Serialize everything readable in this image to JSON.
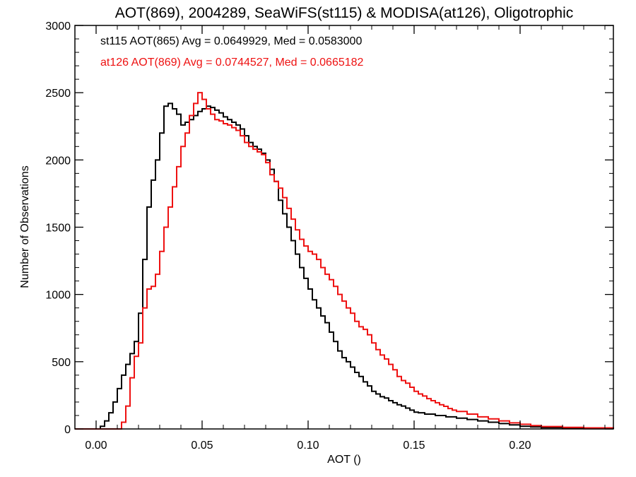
{
  "chart_data": {
    "type": "line",
    "step": true,
    "title": "AOT(869), 2004289, SeaWiFS(st115) & MODISA(at126), Oligotrophic",
    "xlabel": "AOT ()",
    "ylabel": "Number of Observations",
    "xlim": [
      -0.01,
      0.244
    ],
    "ylim": [
      0,
      3000
    ],
    "x_ticks": [
      0.0,
      0.05,
      0.1,
      0.15,
      0.2
    ],
    "x_tick_labels": [
      "0.00",
      "0.05",
      "0.10",
      "0.15",
      "0.20"
    ],
    "y_ticks": [
      0,
      500,
      1000,
      1500,
      2000,
      2500,
      3000
    ],
    "y_tick_labels": [
      "0",
      "500",
      "1000",
      "1500",
      "2000",
      "2500",
      "3000"
    ],
    "grid": false,
    "annotations": [
      {
        "text": "st115 AOT(865) Avg = 0.0649929, Med = 0.0583000",
        "color": "#000000"
      },
      {
        "text": "at126 AOT(869) Avg = 0.0744527, Med = 0.0665182",
        "color": "#ee1111"
      }
    ],
    "series": [
      {
        "color": "#000000",
        "points": [
          [
            -0.01,
            0
          ],
          [
            0.0,
            0
          ],
          [
            0.002,
            20
          ],
          [
            0.004,
            60
          ],
          [
            0.006,
            120
          ],
          [
            0.008,
            200
          ],
          [
            0.01,
            300
          ],
          [
            0.012,
            400
          ],
          [
            0.014,
            480
          ],
          [
            0.016,
            560
          ],
          [
            0.018,
            650
          ],
          [
            0.02,
            860
          ],
          [
            0.022,
            1260
          ],
          [
            0.024,
            1650
          ],
          [
            0.026,
            1850
          ],
          [
            0.028,
            2000
          ],
          [
            0.03,
            2200
          ],
          [
            0.032,
            2400
          ],
          [
            0.034,
            2420
          ],
          [
            0.036,
            2380
          ],
          [
            0.038,
            2340
          ],
          [
            0.04,
            2260
          ],
          [
            0.042,
            2280
          ],
          [
            0.044,
            2300
          ],
          [
            0.046,
            2330
          ],
          [
            0.048,
            2360
          ],
          [
            0.05,
            2380
          ],
          [
            0.052,
            2400
          ],
          [
            0.054,
            2390
          ],
          [
            0.056,
            2370
          ],
          [
            0.058,
            2350
          ],
          [
            0.06,
            2320
          ],
          [
            0.062,
            2300
          ],
          [
            0.064,
            2280
          ],
          [
            0.066,
            2260
          ],
          [
            0.068,
            2230
          ],
          [
            0.07,
            2180
          ],
          [
            0.072,
            2130
          ],
          [
            0.074,
            2100
          ],
          [
            0.076,
            2080
          ],
          [
            0.078,
            2050
          ],
          [
            0.08,
            2000
          ],
          [
            0.082,
            1930
          ],
          [
            0.084,
            1840
          ],
          [
            0.086,
            1700
          ],
          [
            0.088,
            1600
          ],
          [
            0.09,
            1500
          ],
          [
            0.092,
            1400
          ],
          [
            0.094,
            1300
          ],
          [
            0.096,
            1200
          ],
          [
            0.098,
            1120
          ],
          [
            0.1,
            1040
          ],
          [
            0.102,
            960
          ],
          [
            0.104,
            900
          ],
          [
            0.106,
            840
          ],
          [
            0.108,
            790
          ],
          [
            0.11,
            720
          ],
          [
            0.112,
            650
          ],
          [
            0.114,
            580
          ],
          [
            0.116,
            530
          ],
          [
            0.118,
            500
          ],
          [
            0.12,
            460
          ],
          [
            0.122,
            420
          ],
          [
            0.124,
            390
          ],
          [
            0.126,
            350
          ],
          [
            0.128,
            320
          ],
          [
            0.13,
            280
          ],
          [
            0.132,
            260
          ],
          [
            0.134,
            240
          ],
          [
            0.136,
            230
          ],
          [
            0.138,
            210
          ],
          [
            0.14,
            195
          ],
          [
            0.142,
            180
          ],
          [
            0.144,
            170
          ],
          [
            0.146,
            155
          ],
          [
            0.148,
            140
          ],
          [
            0.15,
            125
          ],
          [
            0.152,
            120
          ],
          [
            0.155,
            110
          ],
          [
            0.16,
            100
          ],
          [
            0.165,
            90
          ],
          [
            0.17,
            80
          ],
          [
            0.175,
            70
          ],
          [
            0.18,
            60
          ],
          [
            0.185,
            50
          ],
          [
            0.19,
            40
          ],
          [
            0.195,
            30
          ],
          [
            0.2,
            20
          ],
          [
            0.205,
            15
          ],
          [
            0.21,
            10
          ],
          [
            0.22,
            5
          ],
          [
            0.23,
            2
          ],
          [
            0.244,
            0
          ]
        ]
      },
      {
        "color": "#ee1111",
        "points": [
          [
            -0.01,
            0
          ],
          [
            0.01,
            0
          ],
          [
            0.012,
            50
          ],
          [
            0.014,
            170
          ],
          [
            0.016,
            380
          ],
          [
            0.018,
            540
          ],
          [
            0.02,
            640
          ],
          [
            0.022,
            900
          ],
          [
            0.024,
            1040
          ],
          [
            0.026,
            1060
          ],
          [
            0.028,
            1150
          ],
          [
            0.03,
            1320
          ],
          [
            0.032,
            1500
          ],
          [
            0.034,
            1650
          ],
          [
            0.036,
            1800
          ],
          [
            0.038,
            1950
          ],
          [
            0.04,
            2100
          ],
          [
            0.042,
            2200
          ],
          [
            0.044,
            2330
          ],
          [
            0.046,
            2420
          ],
          [
            0.048,
            2500
          ],
          [
            0.05,
            2450
          ],
          [
            0.052,
            2380
          ],
          [
            0.054,
            2340
          ],
          [
            0.056,
            2300
          ],
          [
            0.058,
            2290
          ],
          [
            0.06,
            2270
          ],
          [
            0.062,
            2260
          ],
          [
            0.064,
            2240
          ],
          [
            0.066,
            2220
          ],
          [
            0.068,
            2180
          ],
          [
            0.07,
            2130
          ],
          [
            0.072,
            2100
          ],
          [
            0.074,
            2080
          ],
          [
            0.076,
            2060
          ],
          [
            0.078,
            2040
          ],
          [
            0.08,
            1980
          ],
          [
            0.082,
            1890
          ],
          [
            0.084,
            1840
          ],
          [
            0.086,
            1790
          ],
          [
            0.088,
            1720
          ],
          [
            0.09,
            1640
          ],
          [
            0.092,
            1560
          ],
          [
            0.094,
            1480
          ],
          [
            0.096,
            1410
          ],
          [
            0.098,
            1360
          ],
          [
            0.1,
            1320
          ],
          [
            0.102,
            1300
          ],
          [
            0.104,
            1260
          ],
          [
            0.106,
            1200
          ],
          [
            0.108,
            1150
          ],
          [
            0.11,
            1110
          ],
          [
            0.112,
            1060
          ],
          [
            0.114,
            1000
          ],
          [
            0.116,
            950
          ],
          [
            0.118,
            900
          ],
          [
            0.12,
            860
          ],
          [
            0.122,
            800
          ],
          [
            0.124,
            760
          ],
          [
            0.126,
            740
          ],
          [
            0.128,
            700
          ],
          [
            0.13,
            640
          ],
          [
            0.132,
            590
          ],
          [
            0.134,
            550
          ],
          [
            0.136,
            520
          ],
          [
            0.138,
            480
          ],
          [
            0.14,
            440
          ],
          [
            0.142,
            390
          ],
          [
            0.144,
            360
          ],
          [
            0.146,
            340
          ],
          [
            0.148,
            310
          ],
          [
            0.15,
            280
          ],
          [
            0.152,
            260
          ],
          [
            0.154,
            245
          ],
          [
            0.156,
            225
          ],
          [
            0.158,
            210
          ],
          [
            0.16,
            195
          ],
          [
            0.162,
            180
          ],
          [
            0.164,
            168
          ],
          [
            0.166,
            152
          ],
          [
            0.168,
            140
          ],
          [
            0.17,
            130
          ],
          [
            0.175,
            110
          ],
          [
            0.18,
            90
          ],
          [
            0.185,
            75
          ],
          [
            0.19,
            60
          ],
          [
            0.195,
            45
          ],
          [
            0.2,
            35
          ],
          [
            0.205,
            25
          ],
          [
            0.21,
            18
          ],
          [
            0.22,
            12
          ],
          [
            0.23,
            8
          ],
          [
            0.244,
            5
          ]
        ]
      }
    ]
  }
}
